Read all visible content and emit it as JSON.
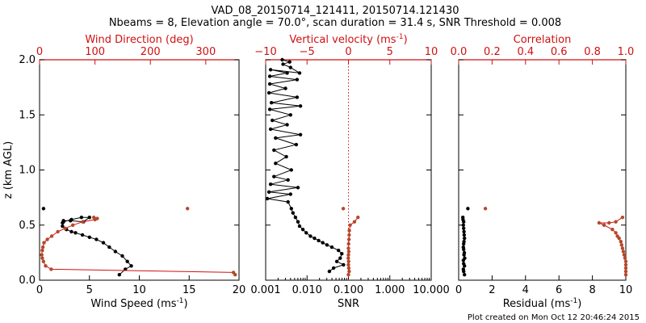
{
  "figure": {
    "title_line1": "VAD_08_20150714_121411, 20150714.121430",
    "title_line2": "Nbeams = 8, Elevation angle = 70.0°, scan duration = 31.4 s, SNR Threshold = 0.008",
    "footer": "Plot created on Mon Oct 12 20:46:24 2015",
    "colors": {
      "black": "#000000",
      "red": "#d01010",
      "marker_red": "#b5482a"
    }
  },
  "chart_data": [
    {
      "type": "line",
      "ylabel": "z (km AGL)",
      "ylim": [
        0.0,
        2.0
      ],
      "yticks": [
        "0.0",
        "0.5",
        "1.0",
        "1.5",
        "2.0"
      ],
      "xlabel": "Wind Speed (ms",
      "xlabel_sup": "-1",
      "xlabel_end": ")",
      "xlim": [
        0,
        20
      ],
      "xticks": [
        "0",
        "5",
        "10",
        "15",
        "20"
      ],
      "x2label": "Wind Direction (deg)",
      "x2lim": [
        0,
        360
      ],
      "x2ticks": [
        "0",
        "100",
        "200",
        "300"
      ],
      "series": [
        {
          "axis": "bottom",
          "color": "#000000",
          "x": [
            8.0,
            8.6,
            9.2,
            8.8,
            8.3,
            7.6,
            7.0,
            6.4,
            5.7,
            5.0,
            4.3,
            3.6,
            3.2,
            2.7,
            2.3,
            2.3,
            2.4,
            3.2,
            4.2,
            5.0,
            4.4,
            3.1,
            2.4
          ],
          "y": [
            0.05,
            0.1,
            0.13,
            0.17,
            0.22,
            0.26,
            0.3,
            0.34,
            0.37,
            0.39,
            0.41,
            0.43,
            0.44,
            0.46,
            0.49,
            0.52,
            0.53,
            0.55,
            0.57,
            0.57,
            0.53,
            0.54,
            0.54
          ]
        },
        {
          "axis": "bottom",
          "color": "#000000",
          "points_only": true,
          "x": [
            0.4
          ],
          "y": [
            0.65
          ]
        },
        {
          "axis": "top",
          "color": "#b5482a",
          "x": [
            353,
            350,
            21,
            11,
            7,
            5,
            4,
            5,
            6,
            8,
            14,
            22,
            33,
            46,
            60,
            78,
            100,
            104,
            98
          ],
          "y": [
            0.05,
            0.07,
            0.1,
            0.13,
            0.17,
            0.2,
            0.23,
            0.27,
            0.3,
            0.34,
            0.37,
            0.4,
            0.44,
            0.47,
            0.5,
            0.53,
            0.55,
            0.56,
            0.57
          ]
        },
        {
          "axis": "top",
          "color": "#b5482a",
          "points_only": true,
          "x": [
            267
          ],
          "y": [
            0.65
          ]
        }
      ]
    },
    {
      "type": "line",
      "xlabel": "SNR",
      "xscale": "log",
      "xlim": [
        0.001,
        10.0
      ],
      "xticks": [
        "0.001",
        "0.010",
        "0.100",
        "1.000",
        "10.000"
      ],
      "x2label": "Vertical velocity (ms",
      "x2label_sup": "-1",
      "x2label_end": ")",
      "x2lim": [
        -10,
        10
      ],
      "x2ticks": [
        "−10",
        "−5",
        "0",
        "5",
        "10"
      ],
      "reference_line_x2": 0,
      "series": [
        {
          "axis": "top",
          "color": "#000000",
          "x": [
            -2.3,
            -1.8,
            -0.6,
            -1.4,
            -1.0,
            -0.8,
            -1.2,
            -2.0,
            -2.6,
            -3.1,
            -3.6,
            -4.1,
            -4.6,
            -5.1,
            -5.5,
            -5.9,
            -6.1,
            -6.4,
            -6.7,
            -6.9,
            -7.3,
            -9.8,
            -7.0,
            -9.6,
            -6.1,
            -9.4,
            -7.3,
            -9.0,
            -6.9,
            -8.8,
            -7.5,
            -9.0,
            -6.3,
            -8.8,
            -5.8,
            -9.4,
            -7.4,
            -9.2,
            -7.0,
            -9.5,
            -5.8,
            -9.3,
            -6.2,
            -9.6,
            -7.6,
            -9.5,
            -6.2,
            -9.5,
            -7.4,
            -9.4,
            -5.9,
            -7.0,
            -7.9,
            -7.1,
            -8.0
          ],
          "y": [
            0.08,
            0.11,
            0.14,
            0.17,
            0.2,
            0.24,
            0.27,
            0.3,
            0.32,
            0.34,
            0.36,
            0.38,
            0.4,
            0.43,
            0.46,
            0.49,
            0.53,
            0.57,
            0.61,
            0.65,
            0.71,
            0.74,
            0.78,
            0.8,
            0.84,
            0.87,
            0.91,
            0.94,
            1.0,
            1.06,
            1.12,
            1.18,
            1.23,
            1.29,
            1.32,
            1.37,
            1.41,
            1.45,
            1.5,
            1.55,
            1.58,
            1.61,
            1.66,
            1.7,
            1.74,
            1.78,
            1.82,
            1.85,
            1.88,
            1.91,
            1.88,
            1.93,
            1.96,
            1.98,
            2.0
          ]
        },
        {
          "axis": "bottom",
          "color": "#b5482a",
          "x": [
            0.1,
            0.104,
            0.102,
            0.1,
            0.101,
            0.099,
            0.1,
            0.102,
            0.1,
            0.101,
            0.103,
            0.104,
            0.105,
            0.11,
            0.14,
            0.17
          ],
          "y": [
            0.05,
            0.08,
            0.11,
            0.14,
            0.17,
            0.2,
            0.23,
            0.26,
            0.29,
            0.33,
            0.37,
            0.41,
            0.45,
            0.5,
            0.53,
            0.57
          ]
        },
        {
          "axis": "bottom",
          "color": "#b5482a",
          "points_only": true,
          "x": [
            0.075
          ],
          "y": [
            0.65
          ]
        }
      ]
    },
    {
      "type": "line",
      "xlabel": "Residual (ms",
      "xlabel_sup": "-1",
      "xlabel_end": ")",
      "xlim": [
        0,
        10
      ],
      "xticks": [
        "0",
        "2",
        "4",
        "6",
        "8",
        "10"
      ],
      "x2label": "Correlation",
      "x2lim": [
        0.0,
        1.0
      ],
      "x2ticks": [
        "0.0",
        "0.2",
        "0.4",
        "0.6",
        "0.8",
        "1.0"
      ],
      "series": [
        {
          "axis": "bottom",
          "color": "#000000",
          "x": [
            0.35,
            0.3,
            0.28,
            0.35,
            0.3,
            0.28,
            0.36,
            0.32,
            0.34,
            0.3,
            0.28,
            0.3,
            0.32,
            0.35,
            0.33,
            0.32,
            0.3,
            0.28,
            0.3,
            0.26,
            0.25
          ],
          "y": [
            0.05,
            0.08,
            0.1,
            0.13,
            0.15,
            0.18,
            0.2,
            0.23,
            0.25,
            0.28,
            0.3,
            0.33,
            0.35,
            0.38,
            0.41,
            0.44,
            0.47,
            0.5,
            0.53,
            0.55,
            0.57
          ]
        },
        {
          "axis": "bottom",
          "color": "#000000",
          "points_only": true,
          "x": [
            0.55
          ],
          "y": [
            0.65
          ]
        },
        {
          "axis": "top",
          "color": "#b5482a",
          "x": [
            1.0,
            1.0,
            1.0,
            1.0,
            1.0,
            0.995,
            0.99,
            0.985,
            0.98,
            0.975,
            0.97,
            0.96,
            0.95,
            0.94,
            0.92,
            0.87,
            0.84,
            0.9,
            0.94,
            0.98
          ],
          "y": [
            0.05,
            0.08,
            0.11,
            0.14,
            0.17,
            0.2,
            0.23,
            0.26,
            0.29,
            0.32,
            0.35,
            0.38,
            0.4,
            0.43,
            0.46,
            0.5,
            0.52,
            0.52,
            0.53,
            0.57
          ]
        },
        {
          "axis": "top",
          "color": "#b5482a",
          "points_only": true,
          "x": [
            0.16
          ],
          "y": [
            0.65
          ]
        }
      ]
    }
  ]
}
